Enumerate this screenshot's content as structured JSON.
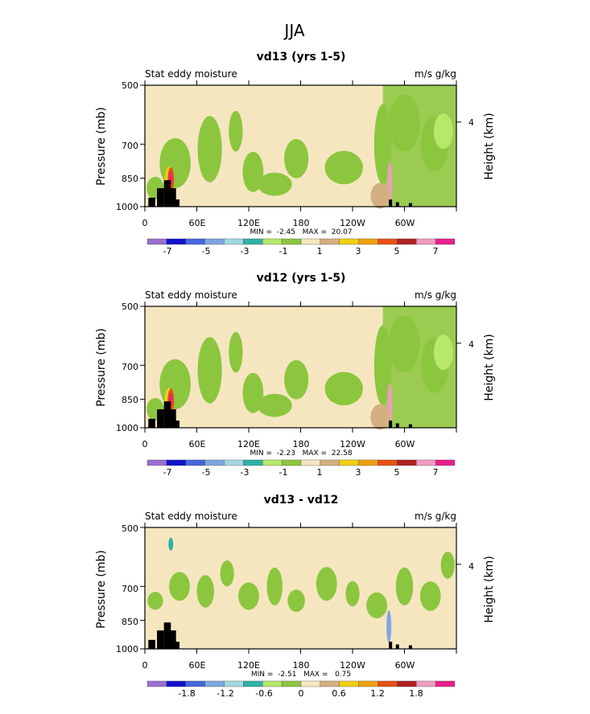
{
  "figure_title": "JJA",
  "colors": {
    "palette13": [
      "#9a6fd0",
      "#1111cc",
      "#4466dd",
      "#7ea6e0",
      "#a4d8e0",
      "#30b0a8",
      "#b8e86a",
      "#8cc63e",
      "#f5e6c0",
      "#d4b080",
      "#f0d010",
      "#f0a010",
      "#e85010",
      "#b02020",
      "#f09cc0",
      "#e8208c"
    ],
    "diff": [
      "#9a6fd0",
      "#1111cc",
      "#4466dd",
      "#7ea6e0",
      "#a4d8e0",
      "#30b0a8",
      "#b8e86a",
      "#8cc63e",
      "#f5e6c0",
      "#d4b080",
      "#f0d010",
      "#f0a010",
      "#e85010",
      "#b02020",
      "#f09cc0",
      "#e8208c"
    ],
    "topography": "#000000"
  },
  "chart_data": [
    {
      "type": "heatmap",
      "title": "vd13 (yrs 1-5)",
      "left_label": "Stat eddy moisture",
      "right_label": "m/s g/kg",
      "ylabel": "Pressure (mb)",
      "ylabel_right": "Height (km)",
      "yticks": [
        500,
        700,
        850,
        1000
      ],
      "ylim": [
        1000,
        500
      ],
      "yticks_right": [
        "4"
      ],
      "xlim": [
        0,
        360
      ],
      "xticks": [
        "0",
        "60E",
        "120E",
        "180",
        "120W",
        "60W"
      ],
      "stats": "MIN =  -2.45   MAX =  20.07",
      "colorbar_labels": [
        "-7",
        "-5",
        "-3",
        "-1",
        "1",
        "3",
        "5",
        "7"
      ],
      "colorbar_levels": [
        -7,
        -6,
        -5,
        -4,
        -3,
        -2,
        -1,
        0,
        1,
        2,
        3,
        4,
        5,
        6,
        7
      ]
    },
    {
      "type": "heatmap",
      "title": "vd12 (yrs 1-5)",
      "left_label": "Stat eddy moisture",
      "right_label": "m/s g/kg",
      "ylabel": "Pressure (mb)",
      "ylabel_right": "Height (km)",
      "yticks": [
        500,
        700,
        850,
        1000
      ],
      "ylim": [
        1000,
        500
      ],
      "yticks_right": [
        "4"
      ],
      "xlim": [
        0,
        360
      ],
      "xticks": [
        "0",
        "60E",
        "120E",
        "180",
        "120W",
        "60W"
      ],
      "stats": "MIN =  -2.23   MAX =  22.58",
      "colorbar_labels": [
        "-7",
        "-5",
        "-3",
        "-1",
        "1",
        "3",
        "5",
        "7"
      ],
      "colorbar_levels": [
        -7,
        -6,
        -5,
        -4,
        -3,
        -2,
        -1,
        0,
        1,
        2,
        3,
        4,
        5,
        6,
        7
      ]
    },
    {
      "type": "heatmap",
      "title": "vd13 - vd12",
      "left_label": "Stat eddy moisture",
      "right_label": "m/s g/kg",
      "ylabel": "Pressure (mb)",
      "ylabel_right": "Height (km)",
      "yticks": [
        500,
        700,
        850,
        1000
      ],
      "ylim": [
        1000,
        500
      ],
      "yticks_right": [
        "4"
      ],
      "xlim": [
        0,
        360
      ],
      "xticks": [
        "0",
        "60E",
        "120E",
        "180",
        "120W",
        "60W"
      ],
      "stats": "MIN =  -2.51   MAX =   0.75",
      "colorbar_labels": [
        "-1.8",
        "-1.2",
        "-0.6",
        "0",
        "0.6",
        "1.2",
        "1.8"
      ],
      "colorbar_levels": [
        -2.1,
        -1.8,
        -1.5,
        -1.2,
        -0.9,
        -0.6,
        -0.3,
        0,
        0.3,
        0.6,
        0.9,
        1.2,
        1.5,
        1.8,
        2.1
      ]
    }
  ]
}
